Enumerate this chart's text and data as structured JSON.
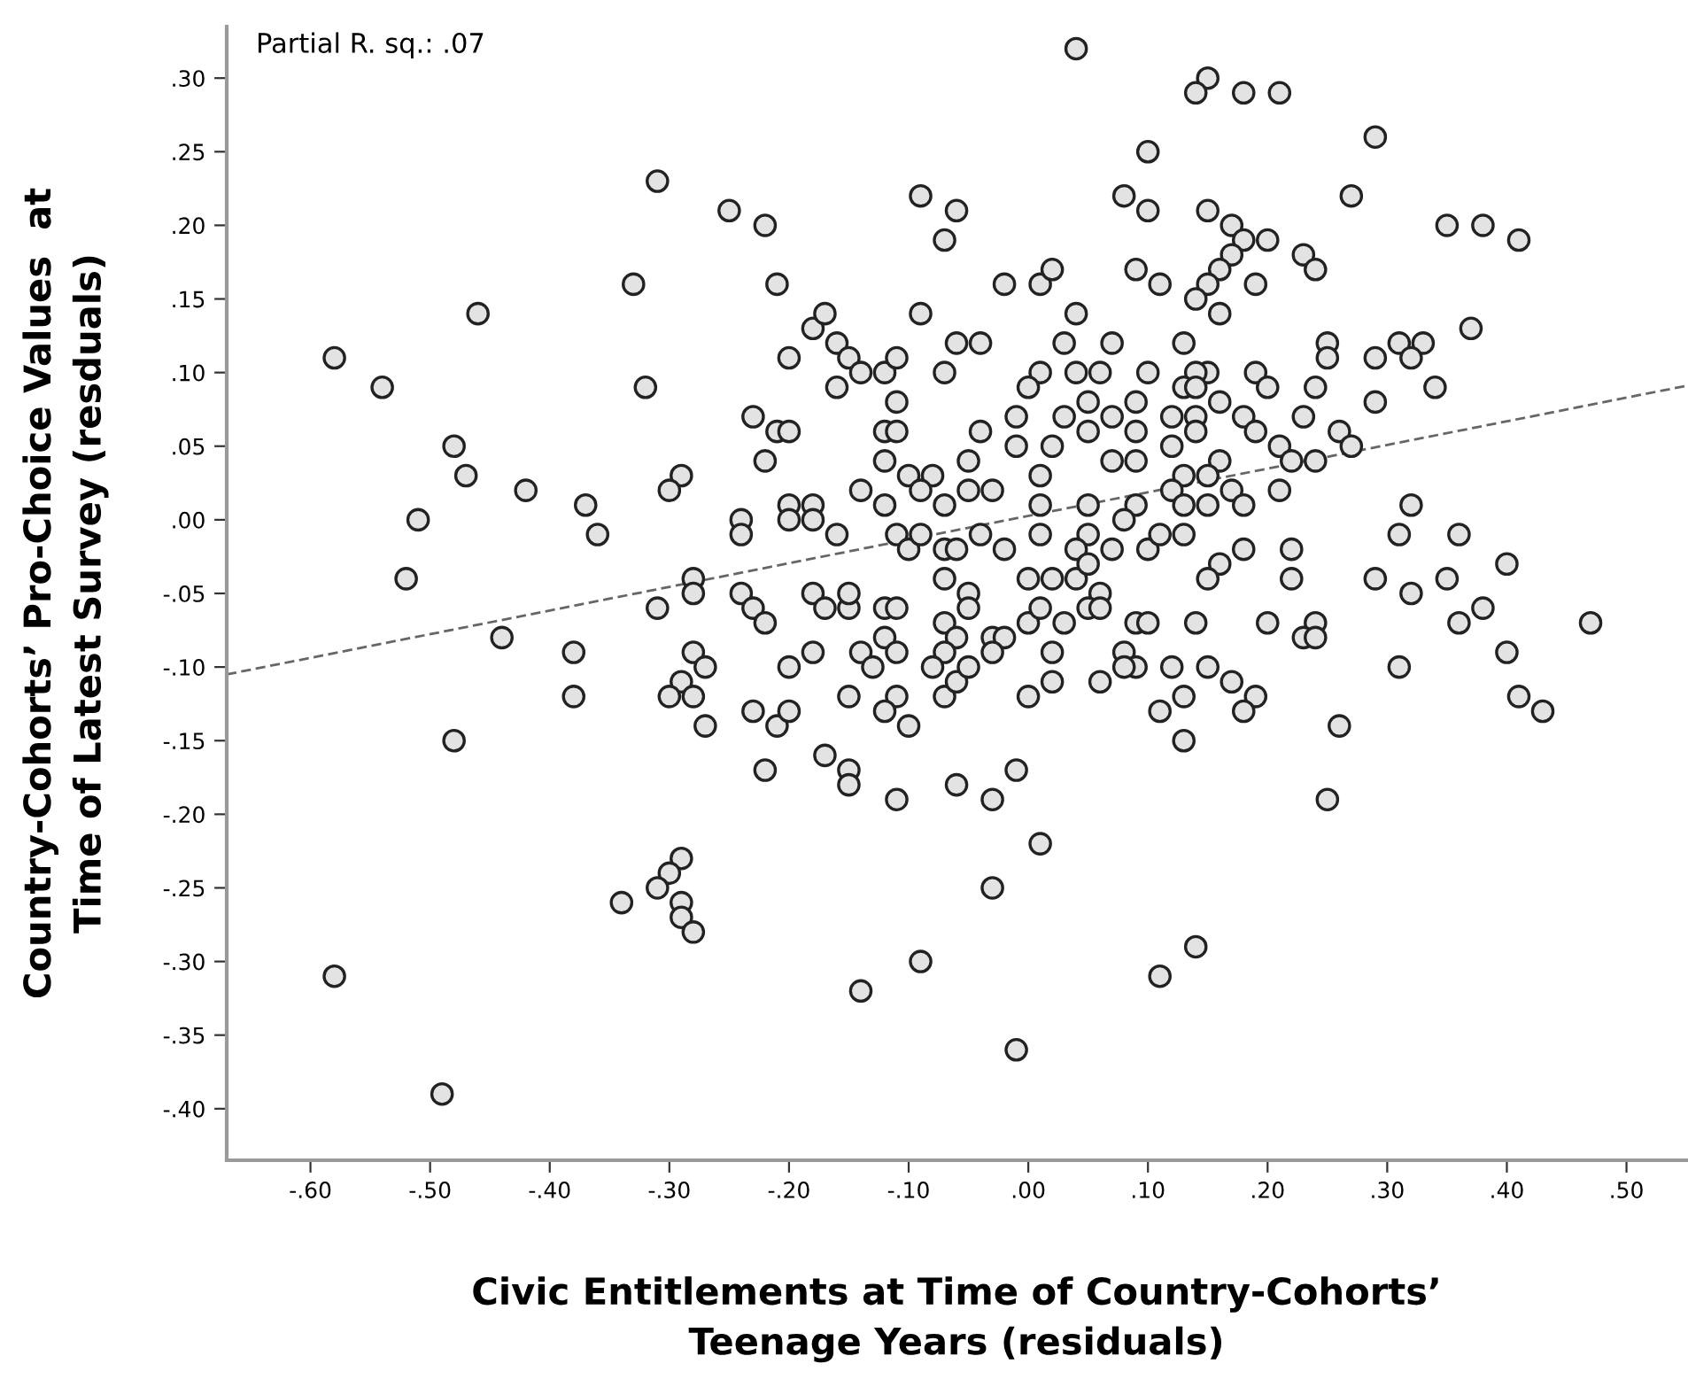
{
  "chart_data": {
    "type": "scatter",
    "annotations": [
      "Partial R. sq.: .07"
    ],
    "xlabel": "Civic Entitlements at Time of Country-Cohorts’\nTeenage Years (residuals)",
    "ylabel": "Country-Cohorts’ Pro-Choice Values  at\nTime of Latest Survey (resduals)",
    "xlim": [
      -0.67,
      0.55
    ],
    "ylim": [
      -0.435,
      0.335
    ],
    "xticks": [
      {
        "value": -0.6,
        "label": "-.60"
      },
      {
        "value": -0.5,
        "label": "-.50"
      },
      {
        "value": -0.4,
        "label": "-.40"
      },
      {
        "value": -0.3,
        "label": "-.30"
      },
      {
        "value": -0.2,
        "label": "-.20"
      },
      {
        "value": -0.1,
        "label": "-.10"
      },
      {
        "value": 0,
        "label": ".00"
      },
      {
        "value": 0.1,
        "label": ".10"
      },
      {
        "value": 0.2,
        "label": ".20"
      },
      {
        "value": 0.3,
        "label": ".30"
      },
      {
        "value": 0.4,
        "label": ".40"
      },
      {
        "value": 0.5,
        "label": ".50"
      }
    ],
    "yticks": [
      {
        "value": 0.3,
        "label": ".30"
      },
      {
        "value": 0.25,
        "label": ".25"
      },
      {
        "value": 0.2,
        "label": ".20"
      },
      {
        "value": 0.15,
        "label": ".15"
      },
      {
        "value": 0.1,
        "label": ".10"
      },
      {
        "value": 0.05,
        "label": ".05"
      },
      {
        "value": 0,
        "label": ".00"
      },
      {
        "value": -0.05,
        "label": "-.05"
      },
      {
        "value": -0.1,
        "label": "-.10"
      },
      {
        "value": -0.15,
        "label": "-.15"
      },
      {
        "value": -0.2,
        "label": "-.20"
      },
      {
        "value": -0.25,
        "label": "-.25"
      },
      {
        "value": -0.3,
        "label": "-.30"
      },
      {
        "value": -0.35,
        "label": "-.35"
      },
      {
        "value": -0.4,
        "label": "-.40"
      }
    ],
    "legend": false,
    "series": [
      {
        "marker": "circle",
        "color": "#e3e3e3",
        "x": [
          -0.58,
          -0.54,
          -0.46,
          -0.48,
          -0.47,
          -0.51,
          -0.52,
          -0.42,
          -0.37,
          -0.36,
          -0.31,
          -0.33,
          -0.32,
          -0.25,
          -0.22,
          -0.21,
          -0.2,
          -0.18,
          -0.17,
          -0.16,
          -0.15,
          -0.14,
          -0.16,
          -0.12,
          -0.11,
          -0.11,
          -0.09,
          -0.07,
          -0.06,
          -0.09,
          -0.06,
          -0.07,
          -0.23,
          -0.21,
          -0.2,
          -0.22,
          -0.2,
          -0.2,
          -0.18,
          -0.18,
          -0.16,
          -0.24,
          -0.24,
          -0.29,
          -0.3,
          -0.28,
          -0.28,
          -0.24,
          -0.12,
          -0.11,
          -0.12,
          -0.1,
          -0.14,
          -0.12,
          -0.08,
          -0.09,
          -0.07,
          -0.11,
          -0.1,
          -0.09,
          -0.07,
          -0.06,
          -0.07,
          -0.05,
          0.04,
          0.15,
          0.14,
          0.18,
          0.21,
          0.29,
          0.1,
          0.08,
          0.1,
          0.15,
          0.27,
          0.17,
          0.18,
          0.2,
          0.23,
          0.24,
          0.17,
          0.16,
          0.15,
          0.09,
          0.11,
          0.19,
          0.14,
          0.16,
          0.35,
          0.38,
          0.41,
          0.37,
          -0.02,
          0.01,
          0.02,
          0.04,
          0.13,
          0.07,
          -0.04,
          0.25,
          0.25,
          0.31,
          0.33,
          0.32,
          0.29,
          0.34,
          0.29,
          0.24,
          0.23,
          0.26,
          0.27,
          0.19,
          0.2,
          0.15,
          0.14,
          0.13,
          0.1,
          0.09,
          0.06,
          0.01,
          0.0,
          0.03,
          0.04,
          0.14,
          0.16,
          0.18,
          0.19,
          0.14,
          0.12,
          0.09,
          0.07,
          0.05,
          0.03,
          -0.01,
          -0.04,
          -0.01,
          0.02,
          0.01,
          0.05,
          0.07,
          0.09,
          0.12,
          0.14,
          0.16,
          0.21,
          0.22,
          0.24,
          0.21,
          0.17,
          0.13,
          0.15,
          0.12,
          0.13,
          0.15,
          0.18,
          0.09,
          0.08,
          0.05,
          0.01,
          -0.03,
          -0.05,
          -0.04,
          -0.02,
          0.01,
          0.05,
          0.07,
          0.04,
          0.0,
          0.02,
          0.06,
          -0.05,
          0.1,
          0.13,
          0.11,
          0.16,
          0.18,
          0.15,
          0.22,
          0.22,
          0.29,
          0.32,
          0.35,
          0.36,
          0.4,
          0.32,
          0.31,
          -0.44,
          -0.38,
          -0.38,
          -0.48,
          -0.58,
          -0.49,
          -0.31,
          -0.28,
          -0.27,
          -0.29,
          -0.3,
          -0.28,
          -0.27,
          -0.23,
          -0.22,
          -0.23,
          -0.21,
          -0.2,
          -0.2,
          -0.18,
          -0.22,
          -0.18,
          -0.17,
          -0.15,
          -0.15,
          -0.12,
          -0.11,
          -0.17,
          -0.15,
          -0.15,
          -0.11,
          -0.14,
          -0.12,
          -0.11,
          -0.13,
          -0.15,
          -0.11,
          -0.12,
          -0.1,
          -0.07,
          -0.06,
          -0.07,
          -0.08,
          -0.07,
          -0.06,
          -0.06,
          -0.09,
          -0.14,
          -0.29,
          -0.3,
          -0.31,
          -0.34,
          -0.29,
          -0.29,
          -0.28,
          0.47,
          0.38,
          0.36,
          0.4,
          0.41,
          0.43,
          0.31,
          0.26,
          0.25,
          0.2,
          0.24,
          0.23,
          0.24,
          0.14,
          0.15,
          0.17,
          0.19,
          0.18,
          0.12,
          0.13,
          0.11,
          0.13,
          0.14,
          0.11,
          0.09,
          0.1,
          0.08,
          0.09,
          0.06,
          0.08,
          0.02,
          0.02,
          0.0,
          -0.03,
          -0.02,
          -0.03,
          -0.05,
          0.0,
          0.03,
          0.05,
          0.06,
          -0.05,
          0.01,
          0.04,
          0.05,
          -0.03,
          -0.01,
          0.01,
          -0.03,
          -0.01
        ],
        "values": [
          0.11,
          0.09,
          0.14,
          0.05,
          0.03,
          0.0,
          -0.04,
          0.02,
          0.01,
          -0.01,
          0.23,
          0.16,
          0.09,
          0.21,
          0.2,
          0.16,
          0.11,
          0.13,
          0.14,
          0.12,
          0.11,
          0.1,
          0.09,
          0.1,
          0.08,
          0.11,
          0.22,
          0.19,
          0.21,
          0.14,
          0.12,
          0.1,
          0.07,
          0.06,
          0.06,
          0.04,
          0.01,
          0.0,
          0.01,
          0.0,
          -0.01,
          0.0,
          -0.01,
          0.03,
          0.02,
          -0.04,
          -0.05,
          -0.05,
          0.06,
          0.06,
          0.04,
          0.03,
          0.02,
          0.01,
          0.03,
          0.02,
          0.01,
          -0.01,
          -0.02,
          -0.01,
          -0.02,
          -0.02,
          -0.04,
          0.04,
          0.32,
          0.3,
          0.29,
          0.29,
          0.29,
          0.26,
          0.25,
          0.22,
          0.21,
          0.21,
          0.22,
          0.2,
          0.19,
          0.19,
          0.18,
          0.17,
          0.18,
          0.17,
          0.16,
          0.17,
          0.16,
          0.16,
          0.15,
          0.14,
          0.2,
          0.2,
          0.19,
          0.13,
          0.16,
          0.16,
          0.17,
          0.14,
          0.12,
          0.12,
          0.12,
          0.12,
          0.11,
          0.12,
          0.12,
          0.11,
          0.11,
          0.09,
          0.08,
          0.09,
          0.07,
          0.06,
          0.05,
          0.1,
          0.09,
          0.1,
          0.1,
          0.09,
          0.1,
          0.08,
          0.1,
          0.1,
          0.09,
          0.12,
          0.1,
          0.09,
          0.08,
          0.07,
          0.06,
          0.07,
          0.07,
          0.06,
          0.07,
          0.08,
          0.07,
          0.07,
          0.06,
          0.05,
          0.05,
          0.03,
          0.06,
          0.04,
          0.04,
          0.05,
          0.06,
          0.04,
          0.05,
          0.04,
          0.04,
          0.02,
          0.02,
          0.03,
          0.03,
          0.02,
          0.01,
          0.01,
          0.01,
          0.01,
          0.0,
          0.01,
          0.01,
          0.02,
          0.02,
          -0.01,
          -0.02,
          -0.01,
          -0.01,
          -0.02,
          -0.02,
          -0.04,
          -0.04,
          -0.05,
          -0.05,
          -0.02,
          -0.01,
          -0.01,
          -0.03,
          -0.02,
          -0.04,
          -0.02,
          -0.04,
          -0.04,
          -0.05,
          -0.04,
          -0.01,
          -0.03,
          0.01,
          -0.01,
          -0.08,
          -0.09,
          -0.12,
          -0.15,
          -0.31,
          -0.39,
          -0.06,
          -0.09,
          -0.1,
          -0.11,
          -0.12,
          -0.12,
          -0.14,
          -0.06,
          -0.07,
          -0.13,
          -0.14,
          -0.13,
          -0.1,
          -0.09,
          -0.17,
          -0.05,
          -0.06,
          -0.06,
          -0.05,
          -0.06,
          -0.06,
          -0.16,
          -0.17,
          -0.18,
          -0.19,
          -0.09,
          -0.08,
          -0.09,
          -0.1,
          -0.12,
          -0.12,
          -0.13,
          -0.14,
          -0.07,
          -0.08,
          -0.09,
          -0.1,
          -0.12,
          -0.11,
          -0.18,
          -0.3,
          -0.32,
          -0.23,
          -0.24,
          -0.25,
          -0.26,
          -0.26,
          -0.27,
          -0.28,
          -0.07,
          -0.06,
          -0.07,
          -0.09,
          -0.12,
          -0.13,
          -0.1,
          -0.14,
          -0.19,
          -0.07,
          -0.07,
          -0.08,
          -0.08,
          -0.07,
          -0.1,
          -0.11,
          -0.12,
          -0.13,
          -0.1,
          -0.12,
          -0.13,
          -0.15,
          -0.29,
          -0.31,
          -0.07,
          -0.07,
          -0.09,
          -0.1,
          -0.11,
          -0.1,
          -0.09,
          -0.11,
          -0.12,
          -0.08,
          -0.08,
          -0.09,
          -0.1,
          -0.07,
          -0.07,
          -0.06,
          -0.06,
          -0.06,
          -0.06,
          -0.04,
          -0.03,
          -0.19,
          -0.17,
          -0.22,
          -0.25,
          -0.36
        ]
      },
      {
        "type": "line",
        "color": "#666666",
        "line_style": "dashed",
        "x": [
          -0.67,
          0.55
        ],
        "values": [
          -0.105,
          0.091
        ]
      }
    ]
  }
}
